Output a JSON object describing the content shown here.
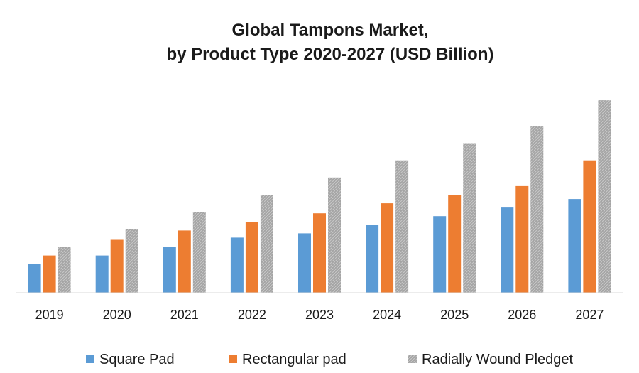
{
  "chart_data": {
    "type": "bar",
    "title_line1": "Global Tampons Market,",
    "title_line2": "by Product Type 2020-2027 (USD Billion)",
    "categories": [
      "2019",
      "2020",
      "2021",
      "2022",
      "2023",
      "2024",
      "2025",
      "2026",
      "2027"
    ],
    "series": [
      {
        "name": "Square Pad",
        "color": "#5b9bd5",
        "values": [
          40,
          52,
          64,
          77,
          83,
          95,
          107,
          119,
          131
        ]
      },
      {
        "name": "Rectangular pad",
        "color": "#ed7d31",
        "values": [
          52,
          74,
          87,
          99,
          111,
          125,
          137,
          149,
          185
        ]
      },
      {
        "name": "Radially Wound Pledget",
        "color": "#a5a5a5",
        "values": [
          64,
          89,
          113,
          137,
          161,
          185,
          209,
          233,
          269
        ]
      }
    ],
    "ylim": [
      0,
      280
    ],
    "grid": false,
    "legend": "bottom"
  }
}
